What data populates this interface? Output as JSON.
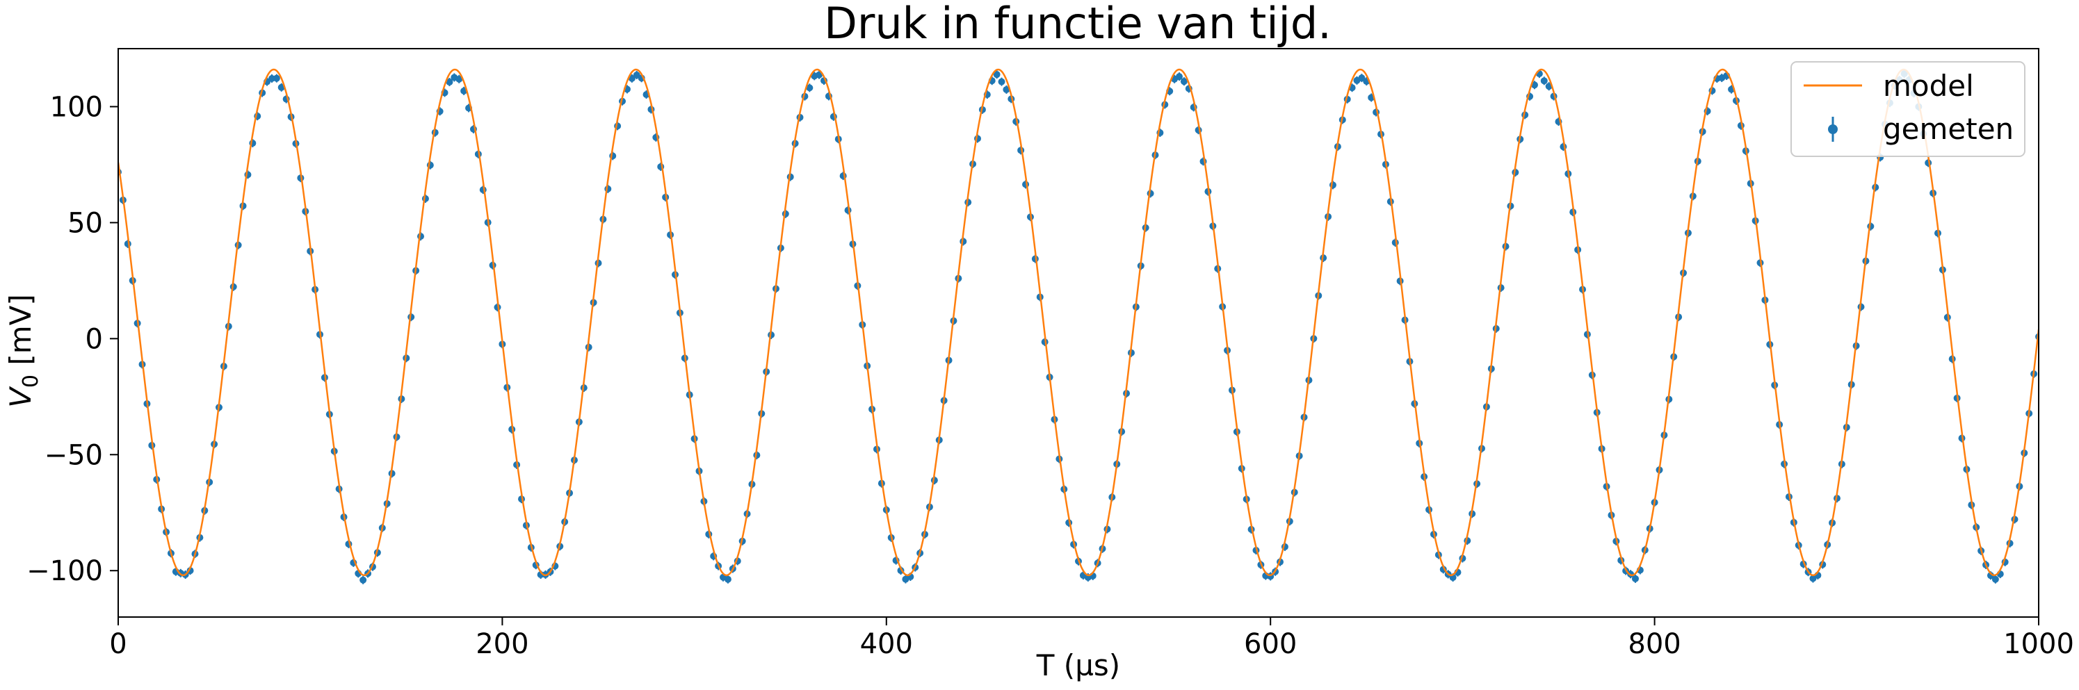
{
  "chart_data": {
    "type": "line",
    "title": "Druk in functie van tijd.",
    "xlabel": "T (µs)",
    "ylabel_main": "V",
    "ylabel_sub": "0",
    "ylabel_unit": " [mV]",
    "xlim": [
      0,
      1000
    ],
    "ylim": [
      -120,
      125
    ],
    "xticks": [
      0,
      200,
      400,
      600,
      800,
      1000
    ],
    "xtick_labels": [
      "0",
      "200",
      "400",
      "600",
      "800",
      "1000"
    ],
    "yticks": [
      -100,
      -50,
      0,
      50,
      100
    ],
    "ytick_labels": [
      "−100",
      "−50",
      "0",
      "50",
      "100"
    ],
    "grid": false,
    "legend_position": "top-right",
    "series": [
      {
        "name": "model",
        "kind": "line",
        "color": "#ff7f0e",
        "function": "sine",
        "offset": 7,
        "amplitude": 109,
        "period": 94.3,
        "peak_x": 81,
        "x_range": [
          0,
          1000
        ]
      },
      {
        "name": "gemeten",
        "kind": "errorbar-scatter",
        "color": "#1f77b4",
        "offset": 5,
        "amplitude": 108,
        "period": 94.3,
        "peak_x": 81,
        "x_range": [
          0,
          1000
        ],
        "x_step": 2.5
      }
    ]
  }
}
